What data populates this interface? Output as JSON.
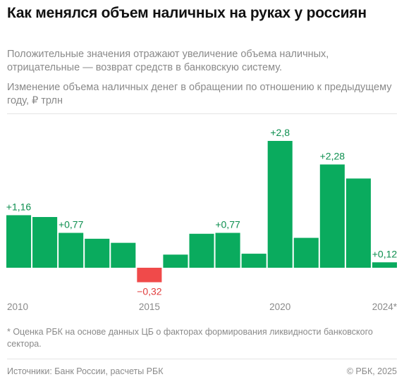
{
  "header": {
    "title": "Как менялся объем наличных на руках у россиян",
    "subtitle": "Положительные значения отражают увеличение объема наличных, отрицательные — возврат средств в банковскую систему.",
    "chart_caption": "Изменение объема наличных денег в обращении по отношению к предыдущему году, ₽ трлн"
  },
  "chart_data": {
    "type": "bar",
    "categories": [
      "2010",
      "2011",
      "2012",
      "2013",
      "2014",
      "2015",
      "2016",
      "2017",
      "2018",
      "2019",
      "2020",
      "2021",
      "2022",
      "2023",
      "2024*"
    ],
    "values": [
      1.16,
      1.12,
      0.77,
      0.64,
      0.55,
      -0.32,
      0.29,
      0.75,
      0.77,
      0.31,
      2.8,
      0.66,
      2.28,
      1.97,
      0.12
    ],
    "value_labels": [
      "+1,16",
      "",
      "+0,77",
      "",
      "",
      "−0,32",
      "",
      "",
      "+0,77",
      "",
      "+2,8",
      "",
      "+2,28",
      "",
      "+0,12"
    ],
    "x_tick_labels": [
      "2010",
      "",
      "",
      "",
      "",
      "2015",
      "",
      "",
      "",
      "",
      "2020",
      "",
      "",
      "",
      "2024*"
    ],
    "colors": {
      "positive": "#0aab5e",
      "negative": "#f04a4a",
      "positive_label": "#0d8f4f",
      "negative_label": "#e03c3c",
      "axis_label": "#8a8a8a"
    },
    "ylim": [
      -0.32,
      2.8
    ],
    "grid": false,
    "legend": "none"
  },
  "footer": {
    "footnote": "* Оценка РБК на основе данных ЦБ о факторах формирования ликвидности банковского сектора.",
    "source": "Источники: Банк России, расчеты РБК",
    "copyright": "© РБК, 2025"
  }
}
